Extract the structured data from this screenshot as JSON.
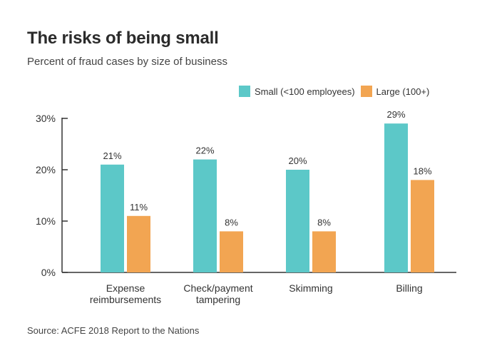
{
  "title": "The risks of being small",
  "subtitle": "Percent of fraud cases by size of business",
  "source": "Source: ACFE 2018 Report to the Nations",
  "colors": {
    "small": "#5cc8c8",
    "large": "#f2a552",
    "axis": "#333333",
    "text": "#333333"
  },
  "chart_data": {
    "type": "bar",
    "title": "The risks of being small",
    "xlabel": "",
    "ylabel": "",
    "ylim": [
      0,
      30
    ],
    "yticks": [
      0,
      10,
      20,
      30
    ],
    "ytick_labels": [
      "0%",
      "10%",
      "20%",
      "30%"
    ],
    "categories": [
      [
        "Expense",
        "reimbursements"
      ],
      [
        "Check/payment",
        "tampering"
      ],
      [
        "Skimming"
      ],
      [
        "Billing"
      ]
    ],
    "series": [
      {
        "name": "Small (<100 employees)",
        "values": [
          21,
          22,
          20,
          29
        ],
        "labels": [
          "21%",
          "22%",
          "20%",
          "29%"
        ]
      },
      {
        "name": "Large (100+)",
        "values": [
          11,
          8,
          8,
          18
        ],
        "labels": [
          "11%",
          "8%",
          "8%",
          "18%"
        ]
      }
    ],
    "legend_position": "top-right"
  }
}
